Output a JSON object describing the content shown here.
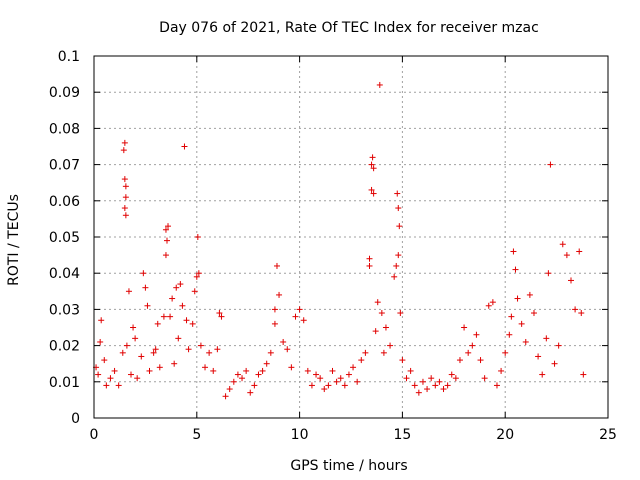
{
  "chart_data": {
    "type": "scatter",
    "title": "Day 076 of 2021, Rate Of TEC Index for receiver mzac",
    "xlabel": "GPS time / hours",
    "ylabel": "ROTI / TECUs",
    "xlim": [
      0,
      25
    ],
    "ylim": [
      0,
      0.1
    ],
    "xticks": [
      0,
      5,
      10,
      15,
      20,
      25
    ],
    "xtick_labels": [
      "0",
      "5",
      "10",
      "15",
      "20",
      "25"
    ],
    "yticks": [
      0,
      0.01,
      0.02,
      0.03,
      0.04,
      0.05,
      0.06,
      0.07,
      0.08,
      0.09,
      0.1
    ],
    "ytick_labels": [
      "0",
      "0.01",
      "0.02",
      "0.03",
      "0.04",
      "0.05",
      "0.06",
      "0.07",
      "0.08",
      "0.09",
      "0.1"
    ],
    "grid": true,
    "marker": "+",
    "marker_color": "#e00000",
    "series": [
      {
        "name": "ROTI",
        "points": [
          [
            0.1,
            0.014
          ],
          [
            0.2,
            0.012
          ],
          [
            0.3,
            0.021
          ],
          [
            0.35,
            0.027
          ],
          [
            0.5,
            0.016
          ],
          [
            0.6,
            0.009
          ],
          [
            0.8,
            0.011
          ],
          [
            1.0,
            0.013
          ],
          [
            1.2,
            0.009
          ],
          [
            1.4,
            0.018
          ],
          [
            1.45,
            0.074
          ],
          [
            1.5,
            0.076
          ],
          [
            1.5,
            0.066
          ],
          [
            1.55,
            0.064
          ],
          [
            1.55,
            0.061
          ],
          [
            1.5,
            0.058
          ],
          [
            1.55,
            0.056
          ],
          [
            1.6,
            0.02
          ],
          [
            1.7,
            0.035
          ],
          [
            1.8,
            0.012
          ],
          [
            1.9,
            0.025
          ],
          [
            2.0,
            0.022
          ],
          [
            2.1,
            0.011
          ],
          [
            2.3,
            0.017
          ],
          [
            2.4,
            0.04
          ],
          [
            2.5,
            0.036
          ],
          [
            2.6,
            0.031
          ],
          [
            2.7,
            0.013
          ],
          [
            2.9,
            0.018
          ],
          [
            3.0,
            0.019
          ],
          [
            3.1,
            0.026
          ],
          [
            3.2,
            0.014
          ],
          [
            3.4,
            0.028
          ],
          [
            3.5,
            0.045
          ],
          [
            3.5,
            0.052
          ],
          [
            3.55,
            0.049
          ],
          [
            3.6,
            0.053
          ],
          [
            3.7,
            0.028
          ],
          [
            3.8,
            0.033
          ],
          [
            3.9,
            0.015
          ],
          [
            4.0,
            0.036
          ],
          [
            4.1,
            0.022
          ],
          [
            4.2,
            0.037
          ],
          [
            4.3,
            0.031
          ],
          [
            4.4,
            0.075
          ],
          [
            4.5,
            0.027
          ],
          [
            4.6,
            0.019
          ],
          [
            4.8,
            0.026
          ],
          [
            4.9,
            0.035
          ],
          [
            5.0,
            0.039
          ],
          [
            5.05,
            0.05
          ],
          [
            5.1,
            0.04
          ],
          [
            5.2,
            0.02
          ],
          [
            5.4,
            0.014
          ],
          [
            5.6,
            0.018
          ],
          [
            5.8,
            0.013
          ],
          [
            6.0,
            0.019
          ],
          [
            6.1,
            0.029
          ],
          [
            6.2,
            0.028
          ],
          [
            6.4,
            0.006
          ],
          [
            6.6,
            0.008
          ],
          [
            6.8,
            0.01
          ],
          [
            7.0,
            0.012
          ],
          [
            7.2,
            0.011
          ],
          [
            7.4,
            0.013
          ],
          [
            7.6,
            0.007
          ],
          [
            7.8,
            0.009
          ],
          [
            8.0,
            0.012
          ],
          [
            8.2,
            0.013
          ],
          [
            8.4,
            0.015
          ],
          [
            8.6,
            0.018
          ],
          [
            8.8,
            0.026
          ],
          [
            8.8,
            0.03
          ],
          [
            8.9,
            0.042
          ],
          [
            9.0,
            0.034
          ],
          [
            9.2,
            0.021
          ],
          [
            9.4,
            0.019
          ],
          [
            9.6,
            0.014
          ],
          [
            9.8,
            0.028
          ],
          [
            10.0,
            0.03
          ],
          [
            10.2,
            0.027
          ],
          [
            10.4,
            0.013
          ],
          [
            10.6,
            0.009
          ],
          [
            10.8,
            0.012
          ],
          [
            11.0,
            0.011
          ],
          [
            11.2,
            0.008
          ],
          [
            11.4,
            0.009
          ],
          [
            11.6,
            0.013
          ],
          [
            11.8,
            0.01
          ],
          [
            12.0,
            0.011
          ],
          [
            12.2,
            0.009
          ],
          [
            12.4,
            0.012
          ],
          [
            12.6,
            0.014
          ],
          [
            12.8,
            0.01
          ],
          [
            13.0,
            0.016
          ],
          [
            13.2,
            0.018
          ],
          [
            13.4,
            0.042
          ],
          [
            13.4,
            0.044
          ],
          [
            13.5,
            0.07
          ],
          [
            13.55,
            0.072
          ],
          [
            13.6,
            0.069
          ],
          [
            13.5,
            0.063
          ],
          [
            13.6,
            0.062
          ],
          [
            13.7,
            0.024
          ],
          [
            13.8,
            0.032
          ],
          [
            13.9,
            0.092
          ],
          [
            14.0,
            0.029
          ],
          [
            14.1,
            0.018
          ],
          [
            14.2,
            0.025
          ],
          [
            14.4,
            0.02
          ],
          [
            14.6,
            0.039
          ],
          [
            14.7,
            0.042
          ],
          [
            14.75,
            0.062
          ],
          [
            14.8,
            0.058
          ],
          [
            14.85,
            0.053
          ],
          [
            14.8,
            0.045
          ],
          [
            14.9,
            0.029
          ],
          [
            15.0,
            0.016
          ],
          [
            15.2,
            0.011
          ],
          [
            15.4,
            0.013
          ],
          [
            15.6,
            0.009
          ],
          [
            15.8,
            0.007
          ],
          [
            16.0,
            0.01
          ],
          [
            16.2,
            0.008
          ],
          [
            16.4,
            0.011
          ],
          [
            16.6,
            0.009
          ],
          [
            16.8,
            0.01
          ],
          [
            17.0,
            0.008
          ],
          [
            17.2,
            0.009
          ],
          [
            17.4,
            0.012
          ],
          [
            17.6,
            0.011
          ],
          [
            17.8,
            0.016
          ],
          [
            18.0,
            0.025
          ],
          [
            18.2,
            0.018
          ],
          [
            18.4,
            0.02
          ],
          [
            18.6,
            0.023
          ],
          [
            18.8,
            0.016
          ],
          [
            19.0,
            0.011
          ],
          [
            19.2,
            0.031
          ],
          [
            19.4,
            0.032
          ],
          [
            19.6,
            0.009
          ],
          [
            19.8,
            0.013
          ],
          [
            20.0,
            0.018
          ],
          [
            20.2,
            0.023
          ],
          [
            20.3,
            0.028
          ],
          [
            20.4,
            0.046
          ],
          [
            20.5,
            0.041
          ],
          [
            20.6,
            0.033
          ],
          [
            20.8,
            0.026
          ],
          [
            21.0,
            0.021
          ],
          [
            21.2,
            0.034
          ],
          [
            21.4,
            0.029
          ],
          [
            21.6,
            0.017
          ],
          [
            21.8,
            0.012
          ],
          [
            22.0,
            0.022
          ],
          [
            22.1,
            0.04
          ],
          [
            22.2,
            0.07
          ],
          [
            22.4,
            0.015
          ],
          [
            22.6,
            0.02
          ],
          [
            22.8,
            0.048
          ],
          [
            23.0,
            0.045
          ],
          [
            23.2,
            0.038
          ],
          [
            23.4,
            0.03
          ],
          [
            23.6,
            0.046
          ],
          [
            23.7,
            0.029
          ],
          [
            23.8,
            0.012
          ]
        ]
      }
    ]
  }
}
